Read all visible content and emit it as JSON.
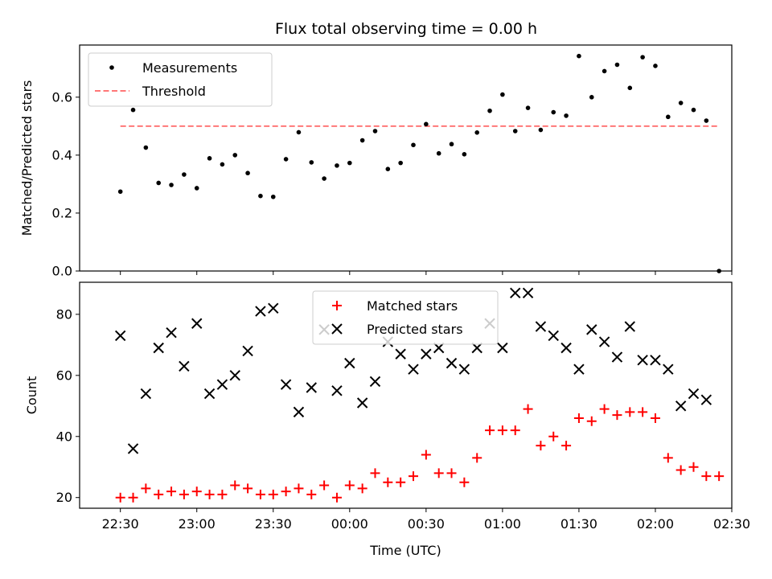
{
  "chart_data": [
    {
      "type": "scatter",
      "title": "Flux total observing time = 0.00 h",
      "xlabel": "",
      "ylabel": "Matched/Predicted stars",
      "ylim": [
        0,
        0.78
      ],
      "yticks": [
        "0.0",
        "0.2",
        "0.4",
        "0.6"
      ],
      "grid": false,
      "legend_position": "upper-left",
      "series": [
        {
          "name": "Measurements",
          "marker": "dot",
          "color": "#000000",
          "values": [
            0.274,
            0.556,
            0.426,
            0.304,
            0.297,
            0.333,
            0.286,
            0.389,
            0.368,
            0.4,
            0.338,
            0.259,
            0.256,
            0.386,
            0.479,
            0.375,
            0.319,
            0.364,
            0.373,
            0.451,
            0.483,
            0.352,
            0.373,
            0.435,
            0.507,
            0.406,
            0.438,
            0.403,
            0.478,
            0.553,
            0.609,
            0.483,
            0.563,
            0.487,
            0.548,
            0.536,
            0.742,
            0.6,
            0.69,
            0.712,
            0.632,
            0.738,
            0.708,
            0.532,
            0.58,
            0.556,
            0.519,
            0.0
          ]
        }
      ],
      "threshold": {
        "name": "Threshold",
        "value": 0.5,
        "color": "#ff7777",
        "style": "dashed"
      }
    },
    {
      "type": "scatter",
      "title": "",
      "xlabel": "Time (UTC)",
      "ylabel": "Count",
      "ylim": [
        16.5,
        90.5
      ],
      "yticks": [
        "20",
        "40",
        "60",
        "80"
      ],
      "grid": false,
      "legend_position": "top-center",
      "series": [
        {
          "name": "Matched stars",
          "marker": "plus",
          "color": "#ff0000",
          "values": [
            20,
            20,
            23,
            21,
            22,
            21,
            22,
            21,
            21,
            24,
            23,
            21,
            21,
            22,
            23,
            21,
            24,
            20,
            24,
            23,
            28,
            25,
            25,
            27,
            34,
            28,
            28,
            25,
            33,
            42,
            42,
            42,
            49,
            37,
            40,
            37,
            46,
            45,
            49,
            47,
            48,
            48,
            46,
            33,
            29,
            30,
            27,
            27
          ]
        },
        {
          "name": "Predicted stars",
          "marker": "x",
          "color": "#000000",
          "values": [
            73,
            36,
            54,
            69,
            74,
            63,
            77,
            54,
            57,
            60,
            68,
            81,
            82,
            57,
            48,
            56,
            75,
            55,
            64,
            51,
            58,
            71,
            67,
            62,
            67,
            69,
            64,
            62,
            69,
            77,
            69,
            87,
            87,
            76,
            73,
            69,
            62,
            75,
            71,
            66,
            76,
            65,
            65,
            62,
            50,
            54,
            52,
            null
          ]
        }
      ]
    }
  ],
  "time_axis": {
    "times": [
      "22:30",
      "22:35",
      "22:40",
      "22:45",
      "22:50",
      "22:55",
      "23:00",
      "23:05",
      "23:10",
      "23:15",
      "23:20",
      "23:25",
      "23:30",
      "23:35",
      "23:40",
      "23:45",
      "23:50",
      "23:55",
      "00:00",
      "00:05",
      "00:10",
      "00:15",
      "00:20",
      "00:25",
      "00:30",
      "00:35",
      "00:40",
      "00:45",
      "00:50",
      "00:55",
      "01:00",
      "01:05",
      "01:10",
      "01:15",
      "01:20",
      "01:25",
      "01:30",
      "01:35",
      "01:40",
      "01:45",
      "01:50",
      "01:55",
      "02:00",
      "02:05",
      "02:10",
      "02:15",
      "02:20",
      "02:25"
    ],
    "ticks": [
      "22:30",
      "23:00",
      "23:30",
      "00:00",
      "00:30",
      "01:00",
      "01:30",
      "02:00",
      "02:30"
    ],
    "range": [
      "22:14",
      "02:30"
    ]
  }
}
